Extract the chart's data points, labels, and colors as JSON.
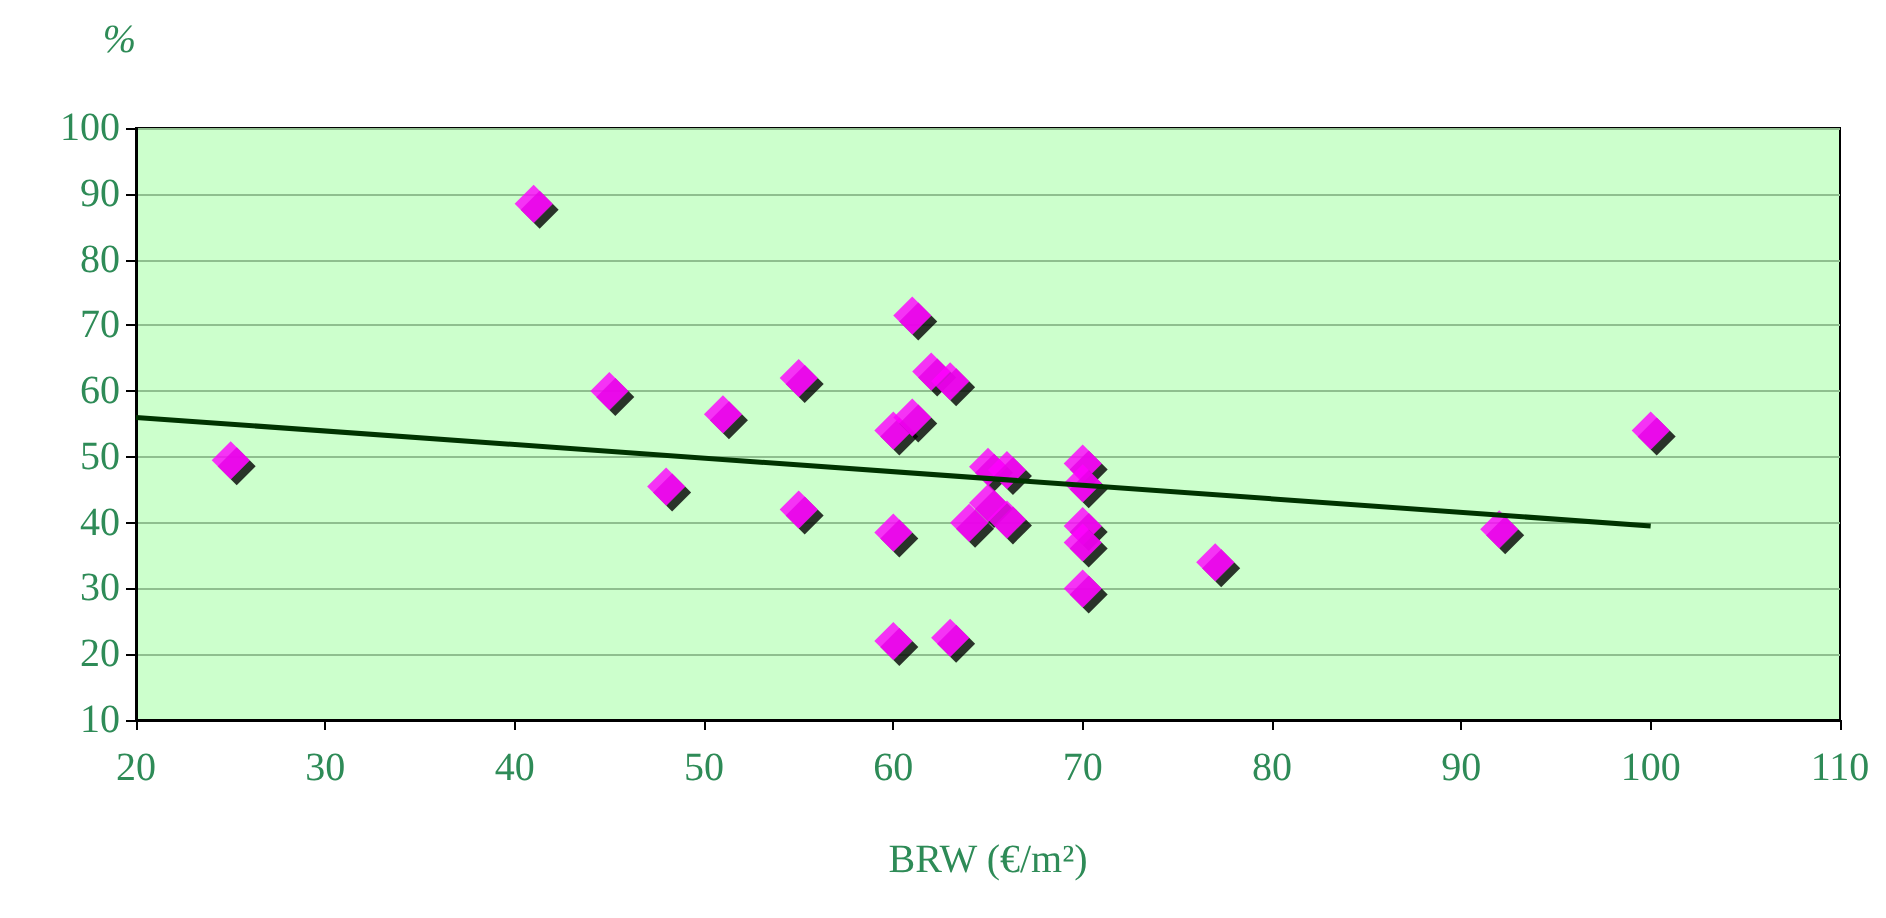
{
  "chart_data": {
    "type": "scatter",
    "xlabel": "BRW (€/m²)",
    "ylabel": "%",
    "xlim": [
      20,
      110
    ],
    "xticks": [
      20,
      30,
      40,
      50,
      60,
      70,
      80,
      90,
      100,
      110
    ],
    "ylim": [
      10,
      100
    ],
    "yticks": [
      10,
      20,
      30,
      40,
      50,
      60,
      70,
      80,
      90,
      100
    ],
    "grid": "y",
    "marker": "diamond",
    "series": [
      {
        "color": "#ff00ff",
        "x": [
          25,
          41,
          45,
          48,
          51,
          55,
          55,
          60,
          60,
          60,
          61,
          61,
          62,
          63,
          63,
          64,
          65,
          65,
          66,
          66,
          70,
          70,
          70,
          70,
          70,
          77,
          92,
          100
        ],
        "values": [
          49.5,
          88.5,
          60,
          45.5,
          56.5,
          62,
          42,
          54,
          38.5,
          22,
          71.5,
          56,
          63,
          61.5,
          22.5,
          40,
          48.5,
          43,
          48,
          40.5,
          49,
          46,
          39.5,
          37,
          30,
          34,
          39,
          54
        ]
      },
      {
        "type": "line",
        "color": "#003300",
        "marker": "none",
        "x": [
          20,
          100
        ],
        "values": [
          56,
          39.5
        ]
      }
    ]
  }
}
